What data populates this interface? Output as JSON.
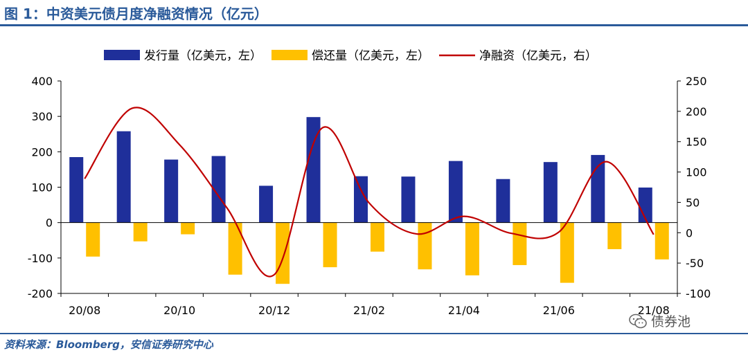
{
  "title": "图 1：中资美元债月度净融资情况（亿元）",
  "source": "资料来源：Bloomberg，安信证券研究中心",
  "watermark": "债券池",
  "watermark_icon": "wechat-icon",
  "colors": {
    "issuance": "#1f2f9a",
    "repayment": "#ffc000",
    "net": "#c00000",
    "accent": "#2a5a9a"
  },
  "chart_data": {
    "type": "bar+line",
    "categories": [
      "20/08",
      "20/09",
      "20/10",
      "20/11",
      "20/12",
      "21/01",
      "21/02",
      "21/03",
      "21/04",
      "21/05",
      "21/06",
      "21/07",
      "21/08"
    ],
    "x_tick_labels": [
      "20/08",
      "20/10",
      "20/12",
      "21/02",
      "21/04",
      "21/06",
      "21/08"
    ],
    "series": [
      {
        "name": "发行量（亿美元，左）",
        "type": "bar",
        "axis": "left",
        "values": [
          185,
          258,
          178,
          188,
          104,
          298,
          131,
          130,
          174,
          123,
          171,
          191,
          99
        ]
      },
      {
        "name": "偿还量（亿美元，左）",
        "type": "bar",
        "axis": "left",
        "values": [
          -96,
          -53,
          -33,
          -147,
          -173,
          -126,
          -82,
          -132,
          -149,
          -120,
          -170,
          -75,
          -104
        ]
      },
      {
        "name": "净融资（亿美元，右）",
        "type": "line",
        "axis": "right",
        "values": [
          89,
          205,
          145,
          41,
          -69,
          172,
          49,
          -2,
          27,
          -1,
          1,
          117,
          -3
        ]
      }
    ],
    "y_left": {
      "min": -200,
      "max": 400,
      "ticks": [
        -200,
        -100,
        0,
        100,
        200,
        300,
        400
      ]
    },
    "y_right": {
      "min": -100,
      "max": 250,
      "ticks": [
        -100,
        -50,
        0,
        50,
        100,
        150,
        200,
        250
      ]
    },
    "legend_position": "top",
    "grid": false
  }
}
